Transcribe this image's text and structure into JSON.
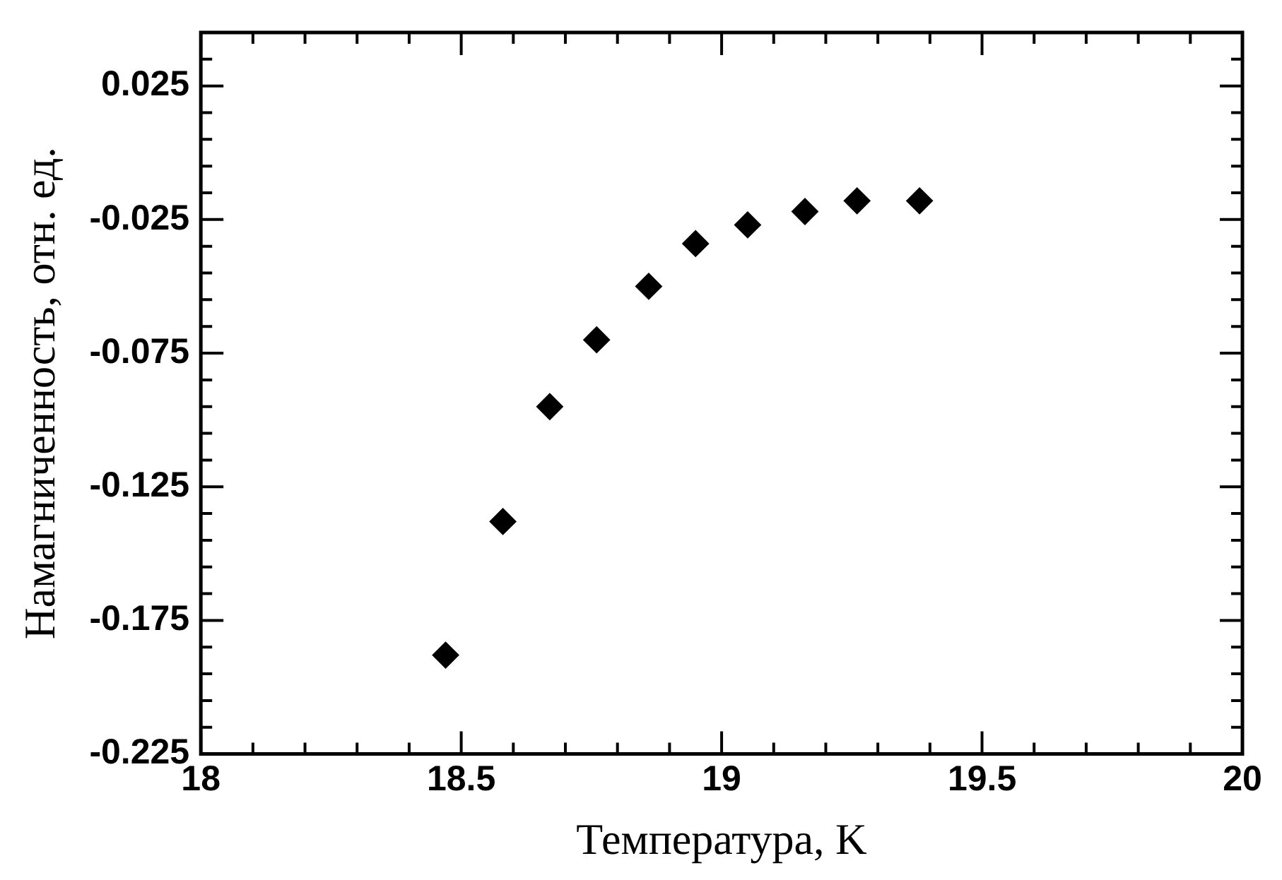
{
  "chart_data": {
    "type": "scatter",
    "xlabel": "Температура, K",
    "ylabel": "Намагниченность, отн. ед.",
    "x": [
      18.47,
      18.58,
      18.67,
      18.76,
      18.86,
      18.95,
      19.05,
      19.16,
      19.26,
      19.38
    ],
    "series": [
      {
        "color": "#000000",
        "values": [
          -0.188,
          -0.138,
          -0.095,
          -0.07,
          -0.05,
          -0.034,
          -0.027,
          -0.022,
          -0.018,
          -0.018
        ]
      }
    ],
    "marker": "diamond",
    "grid": false,
    "legend": false,
    "xlim": [
      18,
      20
    ],
    "xticks": [
      18,
      {
        "value": 18.1,
        "label": null
      },
      {
        "value": 18.2,
        "label": null
      },
      {
        "value": 18.3,
        "label": null
      },
      {
        "value": 18.4,
        "label": null
      },
      18.5,
      {
        "value": 18.6,
        "label": null
      },
      {
        "value": 18.7,
        "label": null
      },
      {
        "value": 18.8,
        "label": null
      },
      {
        "value": 18.9,
        "label": null
      },
      19,
      {
        "value": 19.1,
        "label": null
      },
      {
        "value": 19.2,
        "label": null
      },
      {
        "value": 19.3,
        "label": null
      },
      {
        "value": 19.4,
        "label": null
      },
      19.5,
      {
        "value": 19.6,
        "label": null
      },
      {
        "value": 19.7,
        "label": null
      },
      {
        "value": 19.8,
        "label": null
      },
      {
        "value": 19.9,
        "label": null
      },
      20
    ],
    "ylim": [
      -0.225,
      0.045
    ],
    "yticks": [
      -0.225,
      {
        "value": -0.215,
        "label": null
      },
      {
        "value": -0.205,
        "label": null
      },
      {
        "value": -0.195,
        "label": null
      },
      {
        "value": -0.185,
        "label": null
      },
      -0.175,
      {
        "value": -0.165,
        "label": null
      },
      {
        "value": -0.155,
        "label": null
      },
      {
        "value": -0.145,
        "label": null
      },
      {
        "value": -0.135,
        "label": null
      },
      -0.125,
      {
        "value": -0.115,
        "label": null
      },
      {
        "value": -0.105,
        "label": null
      },
      {
        "value": -0.095,
        "label": null
      },
      {
        "value": -0.085,
        "label": null
      },
      -0.075,
      {
        "value": -0.065,
        "label": null
      },
      {
        "value": -0.055,
        "label": null
      },
      {
        "value": -0.045,
        "label": null
      },
      {
        "value": -0.035,
        "label": null
      },
      -0.025,
      {
        "value": -0.015,
        "label": null
      },
      {
        "value": -0.005,
        "label": null
      },
      {
        "value": 0.005,
        "label": null
      },
      {
        "value": 0.015,
        "label": null
      },
      0.025,
      {
        "value": 0.035,
        "label": null
      }
    ]
  }
}
